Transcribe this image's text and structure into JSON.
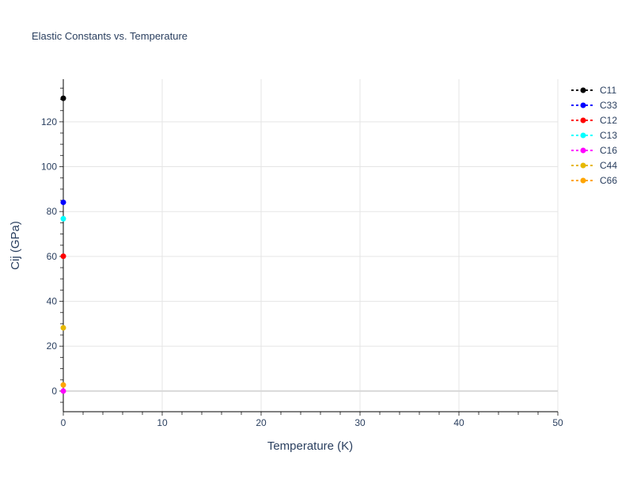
{
  "chart_data": {
    "type": "scatter",
    "title": "Elastic Constants vs. Temperature",
    "xlabel": "Temperature (K)",
    "ylabel": "Cij (GPa)",
    "xlim": [
      0,
      50
    ],
    "ylim": [
      -9.2,
      139
    ],
    "xticks": [
      0,
      10,
      20,
      30,
      40,
      50
    ],
    "yticks": [
      0,
      20,
      40,
      60,
      80,
      100,
      120
    ],
    "grid": true,
    "legend": "top-right",
    "series": [
      {
        "name": "C11",
        "color": "#000000",
        "x": [
          0
        ],
        "y": [
          130.5
        ]
      },
      {
        "name": "C33",
        "color": "#0000ff",
        "x": [
          0
        ],
        "y": [
          84.1
        ]
      },
      {
        "name": "C12",
        "color": "#ff0000",
        "x": [
          0
        ],
        "y": [
          60.1
        ]
      },
      {
        "name": "C13",
        "color": "#00ffff",
        "x": [
          0
        ],
        "y": [
          76.8
        ]
      },
      {
        "name": "C16",
        "color": "#ff00ff",
        "x": [
          0
        ],
        "y": [
          0
        ]
      },
      {
        "name": "C44",
        "color": "#e6b800",
        "x": [
          0
        ],
        "y": [
          28.2
        ]
      },
      {
        "name": "C66",
        "color": "#ffa500",
        "x": [
          0
        ],
        "y": [
          2.7
        ]
      }
    ]
  }
}
